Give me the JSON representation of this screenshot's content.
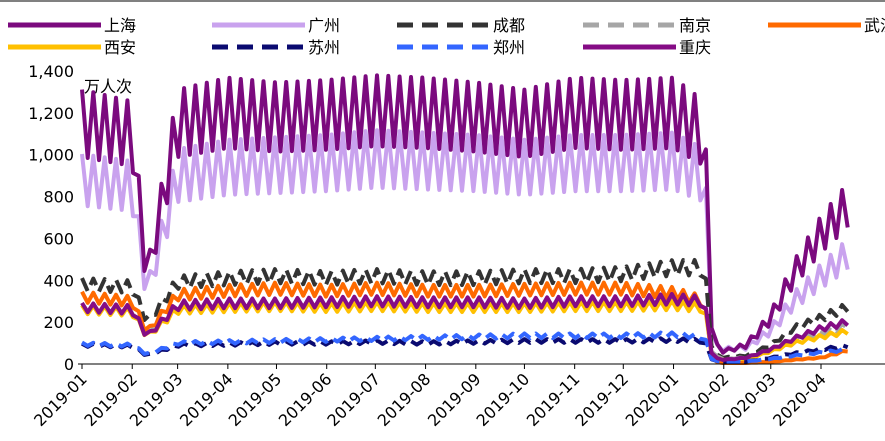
{
  "chart_data": {
    "type": "line",
    "ylabel": "万人次",
    "ylim": [
      0,
      1400
    ],
    "yticks": [
      "0",
      "200",
      "400",
      "600",
      "800",
      "1,000",
      "1,200",
      "1,400"
    ],
    "x_start": "2019-01",
    "x_end": "2020-04",
    "xticks": [
      "2019-01",
      "2019-02",
      "2019-03",
      "2019-04",
      "2019-05",
      "2019-06",
      "2019-07",
      "2019-08",
      "2019-09",
      "2019-10",
      "2019-11",
      "2019-12",
      "2020-01",
      "2020-02",
      "2020-03",
      "2020-04"
    ],
    "legend_position": "top",
    "grid": false,
    "series": [
      {
        "name": "上海",
        "color": "#7B0A7E",
        "style": "solid",
        "width": 4,
        "points": [
          [
            "2019-01",
            1150
          ],
          [
            "2019-02",
            1100
          ],
          [
            "2019-02-10",
            400
          ],
          [
            "2019-03",
            1150
          ],
          [
            "2019-04",
            1200
          ],
          [
            "2019-05",
            1180
          ],
          [
            "2019-06",
            1190
          ],
          [
            "2019-07",
            1210
          ],
          [
            "2019-08",
            1200
          ],
          [
            "2019-09",
            1180
          ],
          [
            "2019-10",
            1150
          ],
          [
            "2019-11",
            1200
          ],
          [
            "2019-12",
            1190
          ],
          [
            "2020-01",
            1200
          ],
          [
            "2020-01-20",
            1100
          ],
          [
            "2020-01-25",
            100
          ],
          [
            "2020-02",
            60
          ],
          [
            "2020-02-15",
            90
          ],
          [
            "2020-03",
            220
          ],
          [
            "2020-03-15",
            430
          ],
          [
            "2020-04",
            620
          ],
          [
            "2020-04-20",
            780
          ]
        ]
      },
      {
        "name": "广州",
        "color": "#C9A2EE",
        "style": "solid",
        "width": 4,
        "points": [
          [
            "2019-01",
            880
          ],
          [
            "2019-02",
            850
          ],
          [
            "2019-02-10",
            330
          ],
          [
            "2019-03",
            900
          ],
          [
            "2019-04",
            940
          ],
          [
            "2019-05",
            950
          ],
          [
            "2019-06",
            960
          ],
          [
            "2019-07",
            980
          ],
          [
            "2019-08",
            970
          ],
          [
            "2019-09",
            960
          ],
          [
            "2019-10",
            940
          ],
          [
            "2019-11",
            960
          ],
          [
            "2019-12",
            960
          ],
          [
            "2020-01",
            970
          ],
          [
            "2020-01-20",
            900
          ],
          [
            "2020-01-25",
            90
          ],
          [
            "2020-02",
            70
          ],
          [
            "2020-02-15",
            80
          ],
          [
            "2020-03",
            160
          ],
          [
            "2020-03-15",
            300
          ],
          [
            "2020-04",
            420
          ],
          [
            "2020-04-20",
            540
          ]
        ]
      },
      {
        "name": "成都",
        "color": "#333333",
        "style": "dashed",
        "width": 4,
        "points": [
          [
            "2019-01",
            380
          ],
          [
            "2019-02",
            370
          ],
          [
            "2019-02-10",
            200
          ],
          [
            "2019-03",
            390
          ],
          [
            "2019-04",
            410
          ],
          [
            "2019-05",
            420
          ],
          [
            "2019-06",
            410
          ],
          [
            "2019-07",
            420
          ],
          [
            "2019-08",
            410
          ],
          [
            "2019-09",
            410
          ],
          [
            "2019-10",
            420
          ],
          [
            "2019-11",
            420
          ],
          [
            "2019-12",
            430
          ],
          [
            "2020-01",
            460
          ],
          [
            "2020-01-20",
            460
          ],
          [
            "2020-01-25",
            50
          ],
          [
            "2020-02",
            30
          ],
          [
            "2020-02-15",
            40
          ],
          [
            "2020-03",
            90
          ],
          [
            "2020-03-15",
            170
          ],
          [
            "2020-04",
            220
          ],
          [
            "2020-04-20",
            280
          ]
        ]
      },
      {
        "name": "南京",
        "color": "#A6A6A6",
        "style": "dashed",
        "width": 4,
        "points": [
          [
            "2019-01",
            270
          ],
          [
            "2019-02",
            260
          ],
          [
            "2019-02-10",
            140
          ],
          [
            "2019-03",
            270
          ],
          [
            "2019-04",
            280
          ],
          [
            "2019-05",
            285
          ],
          [
            "2019-06",
            280
          ],
          [
            "2019-07",
            290
          ],
          [
            "2019-08",
            285
          ],
          [
            "2019-09",
            285
          ],
          [
            "2019-10",
            280
          ],
          [
            "2019-11",
            290
          ],
          [
            "2019-12",
            290
          ],
          [
            "2020-01",
            295
          ],
          [
            "2020-01-20",
            280
          ],
          [
            "2020-01-25",
            40
          ],
          [
            "2020-02",
            25
          ],
          [
            "2020-02-15",
            30
          ],
          [
            "2020-03",
            70
          ],
          [
            "2020-03-15",
            110
          ],
          [
            "2020-04",
            150
          ],
          [
            "2020-04-20",
            190
          ]
        ]
      },
      {
        "name": "武汉",
        "color": "#FF6A00",
        "style": "solid",
        "width": 4,
        "points": [
          [
            "2019-01",
            320
          ],
          [
            "2019-02",
            300
          ],
          [
            "2019-02-10",
            150
          ],
          [
            "2019-03",
            330
          ],
          [
            "2019-04",
            350
          ],
          [
            "2019-05",
            360
          ],
          [
            "2019-06",
            350
          ],
          [
            "2019-07",
            360
          ],
          [
            "2019-08",
            350
          ],
          [
            "2019-09",
            350
          ],
          [
            "2019-10",
            355
          ],
          [
            "2019-11",
            360
          ],
          [
            "2019-12",
            360
          ],
          [
            "2020-01",
            340
          ],
          [
            "2020-01-20",
            300
          ],
          [
            "2020-01-25",
            10
          ],
          [
            "2020-02",
            5
          ],
          [
            "2020-02-15",
            5
          ],
          [
            "2020-03",
            10
          ],
          [
            "2020-03-15",
            20
          ],
          [
            "2020-04",
            30
          ],
          [
            "2020-04-20",
            70
          ]
        ]
      },
      {
        "name": "西安",
        "color": "#FFC000",
        "style": "solid",
        "width": 4,
        "points": [
          [
            "2019-01",
            260
          ],
          [
            "2019-02",
            250
          ],
          [
            "2019-02-10",
            130
          ],
          [
            "2019-03",
            260
          ],
          [
            "2019-04",
            270
          ],
          [
            "2019-05",
            275
          ],
          [
            "2019-06",
            270
          ],
          [
            "2019-07",
            275
          ],
          [
            "2019-08",
            270
          ],
          [
            "2019-09",
            270
          ],
          [
            "2019-10",
            270
          ],
          [
            "2019-11",
            275
          ],
          [
            "2019-12",
            275
          ],
          [
            "2020-01",
            280
          ],
          [
            "2020-01-20",
            270
          ],
          [
            "2020-01-25",
            30
          ],
          [
            "2020-02",
            20
          ],
          [
            "2020-02-15",
            25
          ],
          [
            "2020-03",
            60
          ],
          [
            "2020-03-15",
            100
          ],
          [
            "2020-04",
            130
          ],
          [
            "2020-04-20",
            160
          ]
        ]
      },
      {
        "name": "苏州",
        "color": "#0A0A70",
        "style": "dashed",
        "width": 4,
        "points": [
          [
            "2019-01",
            90
          ],
          [
            "2019-02",
            85
          ],
          [
            "2019-02-10",
            40
          ],
          [
            "2019-03",
            90
          ],
          [
            "2019-04",
            95
          ],
          [
            "2019-05",
            100
          ],
          [
            "2019-06",
            100
          ],
          [
            "2019-07",
            105
          ],
          [
            "2019-08",
            100
          ],
          [
            "2019-09",
            105
          ],
          [
            "2019-10",
            110
          ],
          [
            "2019-11",
            110
          ],
          [
            "2019-12",
            110
          ],
          [
            "2020-01",
            115
          ],
          [
            "2020-01-20",
            110
          ],
          [
            "2020-01-25",
            15
          ],
          [
            "2020-02",
            10
          ],
          [
            "2020-02-15",
            12
          ],
          [
            "2020-03",
            30
          ],
          [
            "2020-03-15",
            50
          ],
          [
            "2020-04",
            70
          ],
          [
            "2020-04-20",
            90
          ]
        ]
      },
      {
        "name": "郑州",
        "color": "#3366FF",
        "style": "dashed",
        "width": 4,
        "points": [
          [
            "2019-01",
            95
          ],
          [
            "2019-02",
            90
          ],
          [
            "2019-02-10",
            45
          ],
          [
            "2019-03",
            100
          ],
          [
            "2019-04",
            105
          ],
          [
            "2019-05",
            110
          ],
          [
            "2019-06",
            115
          ],
          [
            "2019-07",
            120
          ],
          [
            "2019-08",
            125
          ],
          [
            "2019-09",
            130
          ],
          [
            "2019-10",
            135
          ],
          [
            "2019-11",
            135
          ],
          [
            "2019-12",
            135
          ],
          [
            "2020-01",
            140
          ],
          [
            "2020-01-20",
            130
          ],
          [
            "2020-01-25",
            15
          ],
          [
            "2020-02",
            10
          ],
          [
            "2020-02-15",
            12
          ],
          [
            "2020-03",
            25
          ],
          [
            "2020-03-15",
            40
          ],
          [
            "2020-04",
            55
          ],
          [
            "2020-04-20",
            70
          ]
        ]
      },
      {
        "name": "重庆",
        "color": "#850C85",
        "style": "solid",
        "width": 4,
        "points": [
          [
            "2019-01",
            270
          ],
          [
            "2019-02",
            260
          ],
          [
            "2019-02-10",
            130
          ],
          [
            "2019-03",
            280
          ],
          [
            "2019-04",
            290
          ],
          [
            "2019-05",
            290
          ],
          [
            "2019-06",
            295
          ],
          [
            "2019-07",
            300
          ],
          [
            "2019-08",
            295
          ],
          [
            "2019-09",
            295
          ],
          [
            "2019-10",
            290
          ],
          [
            "2019-11",
            300
          ],
          [
            "2019-12",
            300
          ],
          [
            "2020-01",
            310
          ],
          [
            "2020-01-20",
            300
          ],
          [
            "2020-01-25",
            30
          ],
          [
            "2020-02",
            20
          ],
          [
            "2020-02-15",
            30
          ],
          [
            "2020-03",
            70
          ],
          [
            "2020-03-15",
            120
          ],
          [
            "2020-04",
            170
          ],
          [
            "2020-04-20",
            205
          ]
        ]
      }
    ]
  }
}
